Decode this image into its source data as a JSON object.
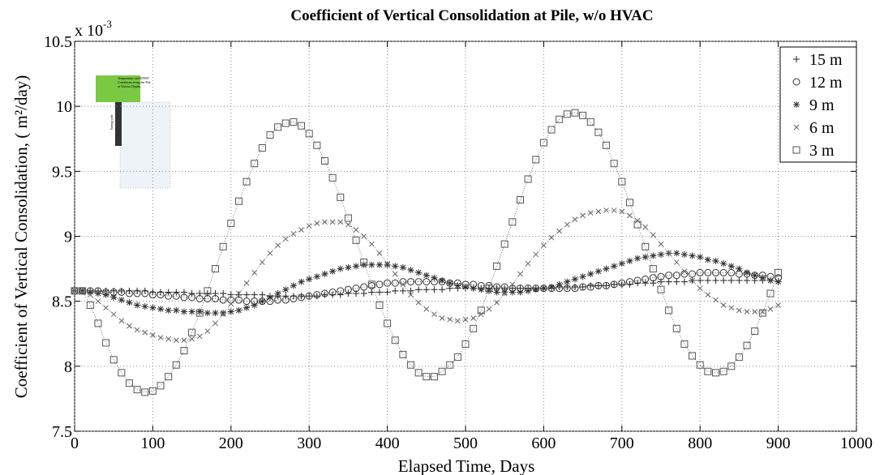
{
  "chart_data": {
    "type": "line",
    "title": "Coefficient of Vertical Consolidation at Pile, w/o HVAC",
    "xlabel": "Elapsed Time, Days",
    "ylabel": "Coefficient of Vertical Consolidation, ( m²/day)",
    "y_multiplier": {
      "base": "x 10",
      "exponent": "-3"
    },
    "inset": {
      "lines": [
        "Temperature and EPWP",
        "Conditions along the Pile",
        "at Various Depths"
      ],
      "pile_label": "Energy pile"
    },
    "xlim": [
      0,
      1000
    ],
    "xticks": [
      0,
      100,
      200,
      300,
      400,
      500,
      600,
      700,
      800,
      900,
      1000
    ],
    "ylim": [
      7.5,
      10.5
    ],
    "yticks": [
      7.5,
      8,
      8.5,
      9,
      9.5,
      10,
      10.5
    ],
    "grid": true,
    "legend": "upper right",
    "x": [
      0,
      10,
      20,
      30,
      40,
      50,
      60,
      70,
      80,
      90,
      100,
      110,
      120,
      130,
      140,
      150,
      160,
      170,
      180,
      190,
      200,
      210,
      220,
      230,
      240,
      250,
      260,
      270,
      280,
      290,
      300,
      310,
      320,
      330,
      340,
      350,
      360,
      370,
      380,
      390,
      400,
      410,
      420,
      430,
      440,
      450,
      460,
      470,
      480,
      490,
      500,
      510,
      520,
      530,
      540,
      550,
      560,
      570,
      580,
      590,
      600,
      610,
      620,
      630,
      640,
      650,
      660,
      670,
      680,
      690,
      700,
      710,
      720,
      730,
      740,
      750,
      760,
      770,
      780,
      790,
      800,
      810,
      820,
      830,
      840,
      850,
      860,
      870,
      880,
      890,
      900
    ],
    "series": [
      {
        "name": "15 m",
        "marker": "+",
        "color": "#222222",
        "values": [
          8.58,
          8.58,
          8.58,
          8.58,
          8.58,
          8.58,
          8.58,
          8.58,
          8.58,
          8.58,
          8.57,
          8.57,
          8.57,
          8.57,
          8.57,
          8.56,
          8.56,
          8.56,
          8.56,
          8.56,
          8.55,
          8.55,
          8.55,
          8.55,
          8.55,
          8.54,
          8.54,
          8.54,
          8.54,
          8.54,
          8.54,
          8.54,
          8.55,
          8.55,
          8.55,
          8.56,
          8.56,
          8.56,
          8.57,
          8.57,
          8.57,
          8.58,
          8.58,
          8.58,
          8.59,
          8.59,
          8.59,
          8.59,
          8.6,
          8.6,
          8.6,
          8.6,
          8.6,
          8.6,
          8.6,
          8.6,
          8.6,
          8.6,
          8.6,
          8.6,
          8.6,
          8.6,
          8.61,
          8.61,
          8.61,
          8.61,
          8.62,
          8.62,
          8.62,
          8.63,
          8.63,
          8.63,
          8.64,
          8.64,
          8.64,
          8.65,
          8.65,
          8.65,
          8.65,
          8.66,
          8.66,
          8.66,
          8.66,
          8.66,
          8.66,
          8.66,
          8.66,
          8.66,
          8.66,
          8.66,
          8.65
        ]
      },
      {
        "name": "12 m",
        "marker": "o",
        "color": "#333333",
        "values": [
          8.58,
          8.58,
          8.58,
          8.58,
          8.57,
          8.57,
          8.57,
          8.56,
          8.56,
          8.56,
          8.55,
          8.55,
          8.54,
          8.54,
          8.53,
          8.53,
          8.52,
          8.52,
          8.52,
          8.51,
          8.51,
          8.51,
          8.5,
          8.5,
          8.5,
          8.5,
          8.51,
          8.51,
          8.52,
          8.53,
          8.54,
          8.55,
          8.56,
          8.57,
          8.58,
          8.59,
          8.6,
          8.61,
          8.62,
          8.63,
          8.64,
          8.64,
          8.65,
          8.65,
          8.65,
          8.65,
          8.65,
          8.65,
          8.64,
          8.64,
          8.63,
          8.63,
          8.62,
          8.62,
          8.61,
          8.61,
          8.6,
          8.6,
          8.6,
          8.6,
          8.6,
          8.6,
          8.6,
          8.6,
          8.6,
          8.61,
          8.61,
          8.62,
          8.62,
          8.63,
          8.64,
          8.65,
          8.66,
          8.67,
          8.68,
          8.69,
          8.7,
          8.7,
          8.71,
          8.71,
          8.72,
          8.72,
          8.72,
          8.72,
          8.72,
          8.71,
          8.71,
          8.7,
          8.7,
          8.69,
          8.68
        ]
      },
      {
        "name": "9 m",
        "marker": "*",
        "color": "#333333",
        "values": [
          8.58,
          8.58,
          8.57,
          8.56,
          8.55,
          8.53,
          8.51,
          8.49,
          8.47,
          8.46,
          8.45,
          8.44,
          8.43,
          8.43,
          8.42,
          8.42,
          8.42,
          8.41,
          8.41,
          8.41,
          8.42,
          8.43,
          8.45,
          8.47,
          8.5,
          8.53,
          8.56,
          8.59,
          8.62,
          8.65,
          8.67,
          8.69,
          8.71,
          8.73,
          8.75,
          8.76,
          8.77,
          8.78,
          8.78,
          8.78,
          8.78,
          8.77,
          8.76,
          8.74,
          8.72,
          8.7,
          8.68,
          8.66,
          8.64,
          8.62,
          8.61,
          8.6,
          8.59,
          8.58,
          8.57,
          8.57,
          8.57,
          8.57,
          8.58,
          8.59,
          8.6,
          8.61,
          8.63,
          8.65,
          8.67,
          8.69,
          8.71,
          8.73,
          8.75,
          8.77,
          8.79,
          8.81,
          8.83,
          8.84,
          8.85,
          8.86,
          8.87,
          8.87,
          8.86,
          8.85,
          8.84,
          8.82,
          8.81,
          8.79,
          8.77,
          8.75,
          8.72,
          8.7,
          8.68,
          8.66,
          8.65
        ]
      },
      {
        "name": "6 m",
        "marker": "x",
        "color": "#666666",
        "values": [
          8.58,
          8.57,
          8.55,
          8.5,
          8.45,
          8.4,
          8.35,
          8.31,
          8.28,
          8.26,
          8.24,
          8.22,
          8.21,
          8.2,
          8.2,
          8.21,
          8.23,
          8.27,
          8.33,
          8.4,
          8.48,
          8.56,
          8.64,
          8.72,
          8.8,
          8.87,
          8.93,
          8.98,
          9.02,
          9.05,
          9.08,
          9.1,
          9.11,
          9.11,
          9.11,
          9.09,
          9.05,
          9.0,
          8.94,
          8.87,
          8.79,
          8.71,
          8.63,
          8.55,
          8.49,
          8.44,
          8.4,
          8.37,
          8.36,
          8.35,
          8.36,
          8.37,
          8.4,
          8.44,
          8.49,
          8.56,
          8.63,
          8.71,
          8.79,
          8.86,
          8.93,
          8.99,
          9.04,
          9.09,
          9.13,
          9.16,
          9.18,
          9.19,
          9.2,
          9.2,
          9.19,
          9.16,
          9.12,
          9.07,
          9.01,
          8.94,
          8.87,
          8.8,
          8.73,
          8.66,
          8.6,
          8.55,
          8.51,
          8.47,
          8.45,
          8.43,
          8.42,
          8.42,
          8.42,
          8.44,
          8.47
        ]
      },
      {
        "name": "3 m",
        "marker": "s",
        "color": "#555555",
        "values": [
          8.58,
          8.58,
          8.47,
          8.33,
          8.18,
          8.05,
          7.95,
          7.87,
          7.82,
          7.8,
          7.81,
          7.85,
          7.92,
          8.01,
          8.12,
          8.26,
          8.41,
          8.58,
          8.75,
          8.92,
          9.1,
          9.27,
          9.42,
          9.56,
          9.68,
          9.78,
          9.84,
          9.87,
          9.88,
          9.85,
          9.79,
          9.7,
          9.58,
          9.45,
          9.3,
          9.14,
          8.97,
          8.8,
          8.63,
          8.47,
          8.33,
          8.2,
          8.09,
          8.01,
          7.95,
          7.92,
          7.92,
          7.96,
          8.01,
          8.07,
          8.17,
          8.29,
          8.43,
          8.6,
          8.77,
          8.94,
          9.11,
          9.28,
          9.44,
          9.59,
          9.72,
          9.82,
          9.9,
          9.94,
          9.95,
          9.93,
          9.88,
          9.8,
          9.7,
          9.56,
          9.42,
          9.26,
          9.09,
          8.92,
          8.75,
          8.59,
          8.43,
          8.29,
          8.17,
          8.08,
          8.01,
          7.96,
          7.95,
          7.96,
          8.0,
          8.07,
          8.16,
          8.27,
          8.41,
          8.56,
          8.72
        ]
      }
    ]
  }
}
